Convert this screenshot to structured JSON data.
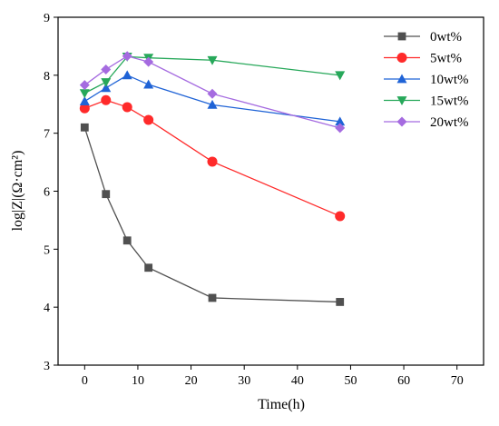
{
  "chart_data": {
    "type": "line",
    "xlabel": "Time(h)",
    "ylabel": "log|Z|(Ω·cm²)",
    "xlim": [
      -5,
      75
    ],
    "ylim": [
      3,
      9
    ],
    "x_ticks": [
      0,
      10,
      20,
      30,
      40,
      50,
      60,
      70
    ],
    "y_ticks": [
      3,
      4,
      5,
      6,
      7,
      8,
      9
    ],
    "legend_position": "top-right",
    "series": [
      {
        "name": "0wt%",
        "marker": "square",
        "color": "#505050",
        "x": [
          0,
          4,
          8,
          12,
          24,
          48
        ],
        "y": [
          7.1,
          5.95,
          5.15,
          4.68,
          4.16,
          4.09
        ]
      },
      {
        "name": "5wt%",
        "marker": "circle",
        "color": "#ff2a2a",
        "x": [
          0,
          4,
          8,
          12,
          24,
          48
        ],
        "y": [
          7.43,
          7.57,
          7.45,
          7.23,
          6.51,
          5.57
        ]
      },
      {
        "name": "10wt%",
        "marker": "triangle-up",
        "color": "#1f63d6",
        "x": [
          0,
          4,
          8,
          12,
          24,
          48
        ],
        "y": [
          7.55,
          7.78,
          8.0,
          7.84,
          7.49,
          7.2
        ]
      },
      {
        "name": "15wt%",
        "marker": "triangle-down",
        "color": "#27a85a",
        "x": [
          0,
          4,
          8,
          12,
          24,
          48
        ],
        "y": [
          7.69,
          7.88,
          8.32,
          8.3,
          8.26,
          8.0
        ]
      },
      {
        "name": "20wt%",
        "marker": "diamond",
        "color": "#a56be0",
        "x": [
          0,
          4,
          8,
          12,
          24,
          48
        ],
        "y": [
          7.83,
          8.1,
          8.33,
          8.23,
          7.68,
          7.09
        ]
      }
    ]
  }
}
